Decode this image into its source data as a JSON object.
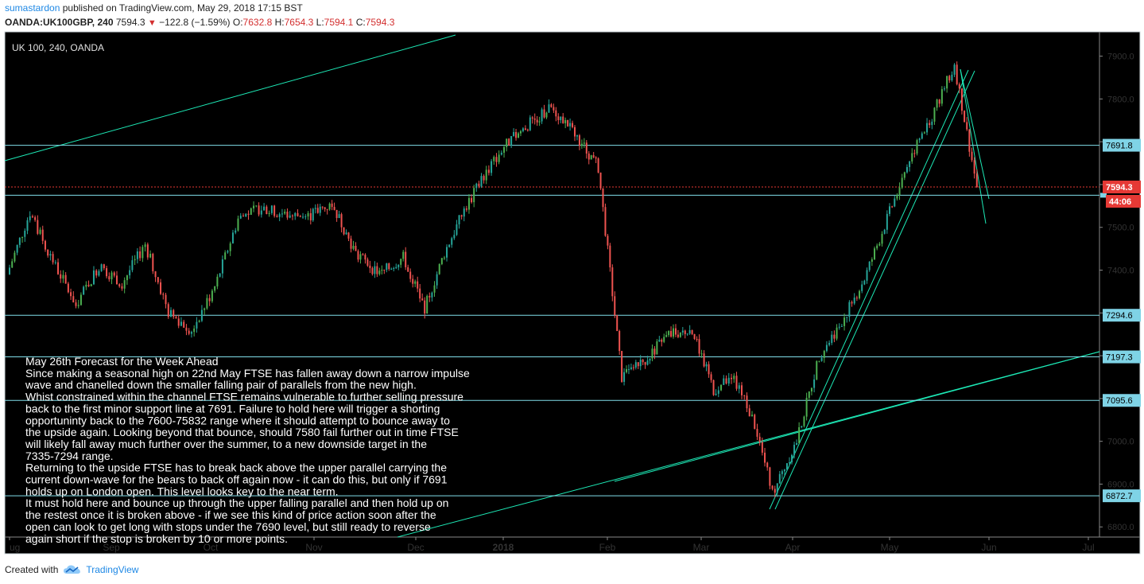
{
  "header": {
    "author": "sumastardon",
    "published_text": "published on TradingView.com, May 29, 2018 17:15 BST",
    "symbol": "OANDA:UK100GBP, 240",
    "last": "7594.3",
    "change": "−122.8 (−1.59%)",
    "o_label": "O:",
    "o_value": "7632.8",
    "h_label": "H:",
    "h_value": "7654.3",
    "l_label": "L:",
    "l_value": "7594.1",
    "c_label": "C:",
    "c_value": "7594.3",
    "down_icon": "triangle-down-icon"
  },
  "footer": {
    "created_with": "Created with",
    "brand": "TradingView",
    "brand_icon": "tradingview-cloud-icon"
  },
  "colors": {
    "background": "#000000",
    "up_candle": "#26a69a",
    "up_candle_bright": "#4caf50",
    "down_candle": "#ef5350",
    "hline": "#80deea",
    "trendline": "#1de9b6",
    "price_tag": "#e53935",
    "level_tag": "#7fd3e6"
  },
  "chart_data": {
    "type": "line",
    "title": "UK 100, 240, OANDA",
    "xlabel": "",
    "ylabel": "",
    "ylim": [
      6780,
      7955
    ],
    "x_ticks": [
      "ug",
      "Sep",
      "Oct",
      "Nov",
      "Dec",
      "2018",
      "Feb",
      "Mar",
      "Apr",
      "May",
      "Jun",
      "Jul"
    ],
    "y_ticks": [
      6800,
      6900,
      7000,
      7100,
      7200,
      7300,
      7400,
      7500,
      7600,
      7700,
      7800,
      7900
    ],
    "y_tick_labels": [
      "6800.0",
      "6900.0",
      "7000.0",
      "7100.0",
      "7200.0",
      "7300.0",
      "7400.0",
      "7500.0",
      "7600.0",
      "7700.0",
      "7800.0",
      "7900.0"
    ],
    "levels": [
      {
        "value": 7691.8,
        "label": "7691.8"
      },
      {
        "value": 7575,
        "label": ""
      },
      {
        "value": 7294.6,
        "label": "7294.6"
      },
      {
        "value": 7197.3,
        "label": "7197.3"
      },
      {
        "value": 7095.6,
        "label": "7095.6"
      },
      {
        "value": 6872.7,
        "label": "6872.7"
      }
    ],
    "last_price": {
      "value": 7594.3,
      "label": "7594.3",
      "countdown": "44:06"
    },
    "series": [
      {
        "values": [
          {
            "t": "2017-08-01",
            "v": 7390
          },
          {
            "t": "2017-08-08",
            "v": 7535
          },
          {
            "t": "2017-08-15",
            "v": 7420
          },
          {
            "t": "2017-08-22",
            "v": 7320
          },
          {
            "t": "2017-08-29",
            "v": 7410
          },
          {
            "t": "2017-09-05",
            "v": 7370
          },
          {
            "t": "2017-09-12",
            "v": 7460
          },
          {
            "t": "2017-09-19",
            "v": 7300
          },
          {
            "t": "2017-09-26",
            "v": 7260
          },
          {
            "t": "2017-10-03",
            "v": 7360
          },
          {
            "t": "2017-10-10",
            "v": 7520
          },
          {
            "t": "2017-10-17",
            "v": 7545
          },
          {
            "t": "2017-10-24",
            "v": 7530
          },
          {
            "t": "2017-10-31",
            "v": 7525
          },
          {
            "t": "2017-11-07",
            "v": 7555
          },
          {
            "t": "2017-11-14",
            "v": 7440
          },
          {
            "t": "2017-11-21",
            "v": 7390
          },
          {
            "t": "2017-11-28",
            "v": 7430
          },
          {
            "t": "2017-12-05",
            "v": 7310
          },
          {
            "t": "2017-12-12",
            "v": 7440
          },
          {
            "t": "2017-12-19",
            "v": 7540
          },
          {
            "t": "2017-12-26",
            "v": 7620
          },
          {
            "t": "2018-01-02",
            "v": 7690
          },
          {
            "t": "2018-01-09",
            "v": 7740
          },
          {
            "t": "2018-01-16",
            "v": 7780
          },
          {
            "t": "2018-01-23",
            "v": 7720
          },
          {
            "t": "2018-01-30",
            "v": 7640
          },
          {
            "t": "2018-02-06",
            "v": 7150
          },
          {
            "t": "2018-02-13",
            "v": 7190
          },
          {
            "t": "2018-02-20",
            "v": 7250
          },
          {
            "t": "2018-02-27",
            "v": 7260
          },
          {
            "t": "2018-03-06",
            "v": 7120
          },
          {
            "t": "2018-03-13",
            "v": 7150
          },
          {
            "t": "2018-03-20",
            "v": 7040
          },
          {
            "t": "2018-03-26",
            "v": 6880
          },
          {
            "t": "2018-04-03",
            "v": 7000
          },
          {
            "t": "2018-04-10",
            "v": 7200
          },
          {
            "t": "2018-04-17",
            "v": 7280
          },
          {
            "t": "2018-04-24",
            "v": 7380
          },
          {
            "t": "2018-05-01",
            "v": 7520
          },
          {
            "t": "2018-05-08",
            "v": 7660
          },
          {
            "t": "2018-05-15",
            "v": 7760
          },
          {
            "t": "2018-05-22",
            "v": 7880
          },
          {
            "t": "2018-05-29",
            "v": 7594
          }
        ]
      }
    ],
    "annotation": {
      "lines": [
        "May 26th Forecast for the Week Ahead",
        "Since making a seasonal high on 22nd May FTSE has fallen away down a narrow impulse",
        "wave and chanelled down the smaller falling pair of parallels from the new high.",
        "Whist constrained within the channel FTSE remains vulnerable to further selling pressure",
        "back to the first minor support line at 7691. Failure to hold here will trigger a shorting",
        "opportuninty back to the 7600-75832 range where it should attempt to bounce away to",
        "the upside again. Looking beyond that bounce, should 7580 fail further out in time FTSE",
        "will likely fall away much further over the summer, to a new downside target in the",
        "7335-7294 range.",
        "Returning to the upside FTSE has to break back above the upper parallel carrying the",
        "current down-wave for the bears to back off again now - it can do this, but only if 7691",
        "holds up on London open. This level looks key to the near term.",
        "It must hold here and bounce up through the upper falling parallel and then hold up on",
        "the restest once it is broken above - if we see this kind of price action soon after the",
        "open can look to get long with stops under the 7690 level, but still ready to reverse",
        "again short if the stop is broken by 10 or more points."
      ]
    }
  }
}
